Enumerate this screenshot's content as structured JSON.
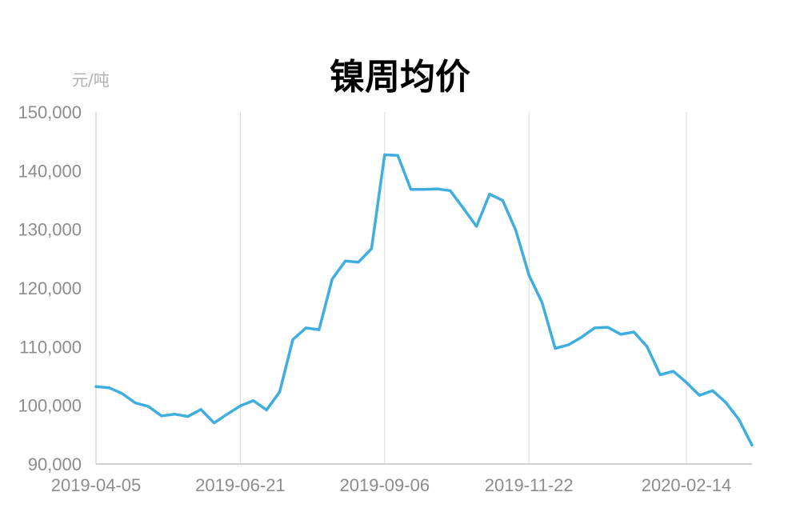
{
  "chart_data": {
    "type": "line",
    "title": "镍周均价",
    "ylabel": "元/吨",
    "xlabel": "",
    "ylim": [
      90000,
      150000
    ],
    "yticks": [
      90000,
      100000,
      110000,
      120000,
      130000,
      140000,
      150000
    ],
    "ytick_labels": [
      "90,000",
      "100,000",
      "110,000",
      "120,000",
      "130,000",
      "140,000",
      "150,000"
    ],
    "xtick_labels": [
      "2019-04-05",
      "2019-06-21",
      "2019-09-06",
      "2019-11-22",
      "2020-02-14"
    ],
    "grid": "vertical",
    "line_color": "#3EADDF",
    "x": [
      "2019-04-05",
      "2019-04-12",
      "2019-04-19",
      "2019-04-26",
      "2019-05-03",
      "2019-05-10",
      "2019-05-17",
      "2019-05-24",
      "2019-05-31",
      "2019-06-07",
      "2019-06-14",
      "2019-06-21",
      "2019-06-28",
      "2019-07-05",
      "2019-07-12",
      "2019-07-19",
      "2019-07-26",
      "2019-08-02",
      "2019-08-09",
      "2019-08-16",
      "2019-08-23",
      "2019-08-30",
      "2019-09-06",
      "2019-09-13",
      "2019-09-20",
      "2019-09-27",
      "2019-10-04",
      "2019-10-11",
      "2019-10-18",
      "2019-10-25",
      "2019-11-01",
      "2019-11-08",
      "2019-11-15",
      "2019-11-22",
      "2019-11-29",
      "2019-12-06",
      "2019-12-13",
      "2019-12-20",
      "2019-12-27",
      "2020-01-03",
      "2020-01-10",
      "2020-01-17",
      "2020-01-24",
      "2020-01-31",
      "2020-02-07",
      "2020-02-14",
      "2020-02-21",
      "2020-02-28",
      "2020-03-06",
      "2020-03-13",
      "2020-03-20"
    ],
    "series": [
      {
        "values": [
          103200,
          103000,
          102000,
          100400,
          99800,
          98200,
          98500,
          98100,
          99300,
          97000,
          98500,
          99900,
          100800,
          99200,
          102300,
          111200,
          113200,
          112900,
          121500,
          124600,
          124400,
          126700,
          142700,
          142600,
          136800,
          136800,
          136900,
          136600,
          133600,
          130500,
          136000,
          134900,
          129800,
          122200,
          117500,
          109700,
          110300,
          111600,
          113200,
          113300,
          112100,
          112500,
          110000,
          105200,
          105800,
          103900,
          101700,
          102500,
          100500,
          97600,
          93200
        ]
      }
    ]
  }
}
